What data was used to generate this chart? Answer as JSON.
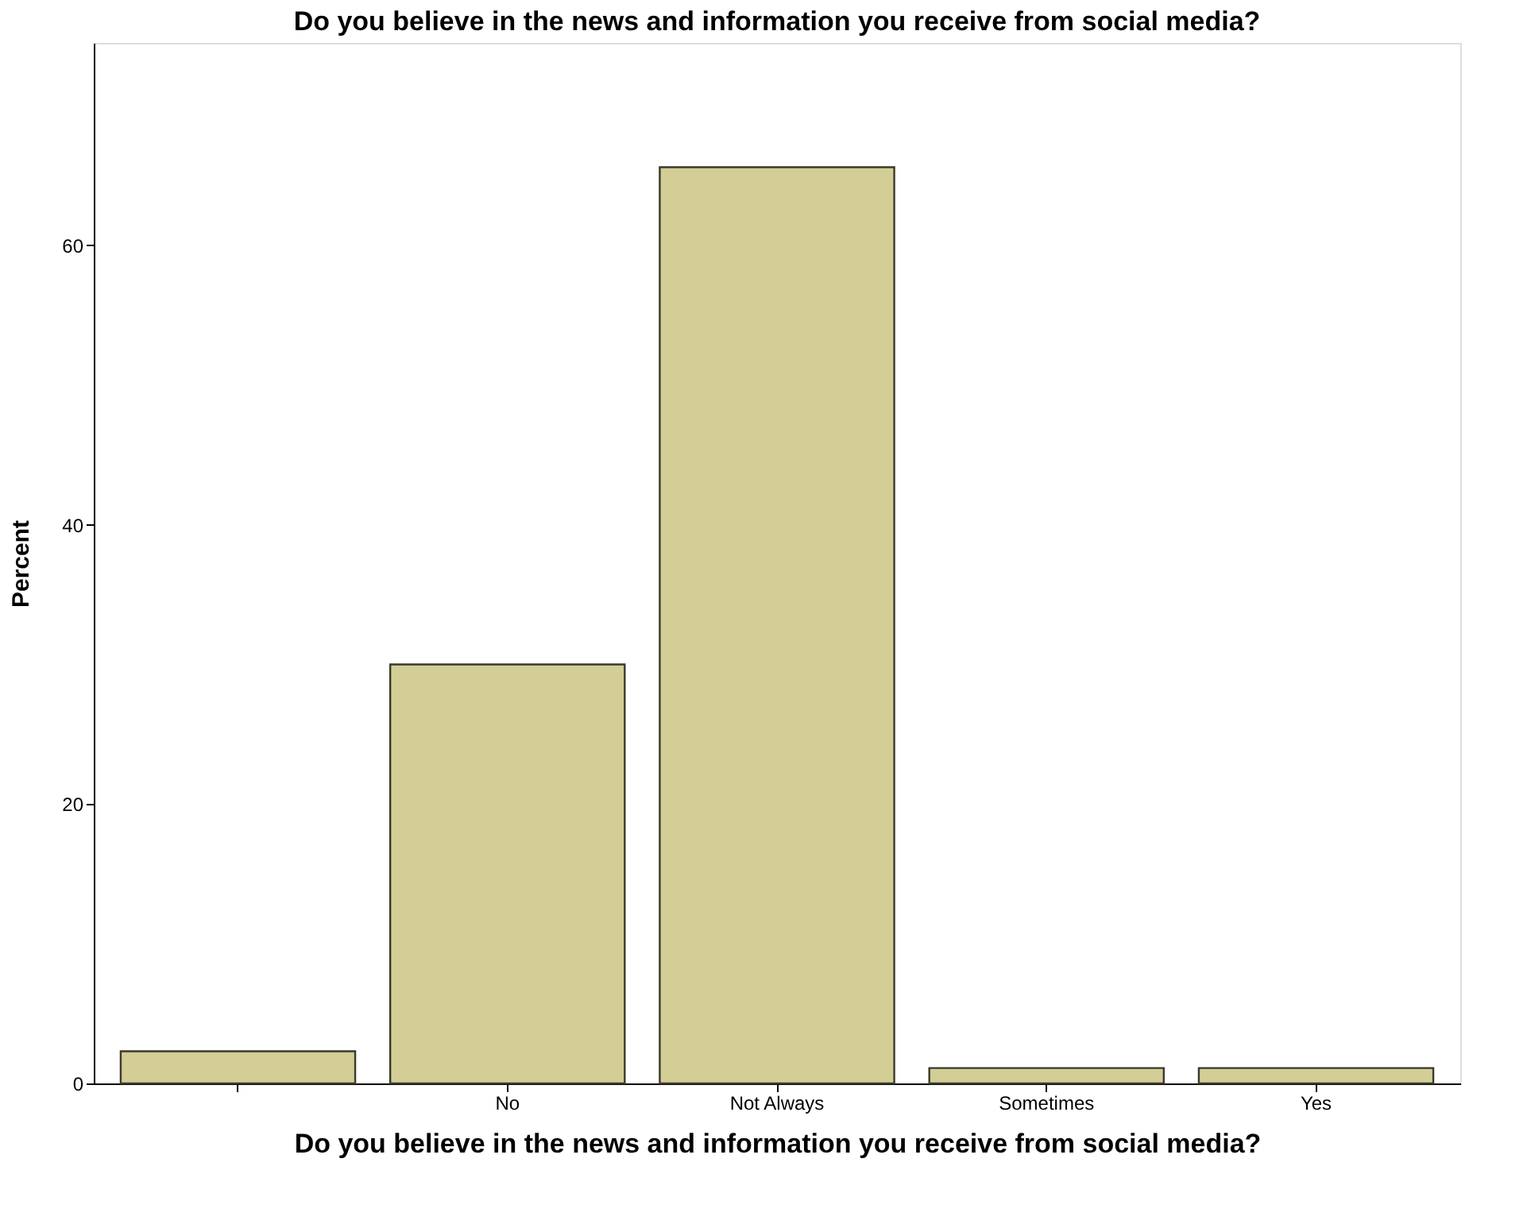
{
  "chart_data": {
    "type": "bar",
    "title": "Do you believe in the news and information you receive from social media?",
    "xlabel": "Do you believe in the news and information you receive from social media?",
    "ylabel": "Percent",
    "categories": [
      null,
      "No",
      "Not Always",
      "Sometimes",
      "Yes"
    ],
    "values": [
      2.3,
      30.0,
      65.6,
      1.1,
      1.1
    ],
    "color": "#d3ce96",
    "ylim": [
      0,
      74.5
    ],
    "yticks": [
      0,
      20,
      40,
      60
    ],
    "grid": false
  }
}
